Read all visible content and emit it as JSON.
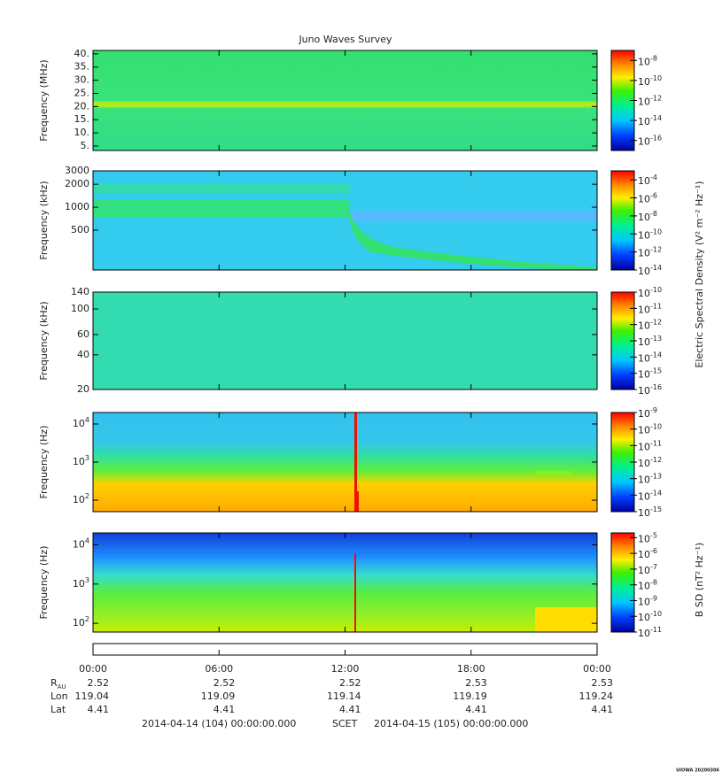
{
  "title": "Juno Waves Survey",
  "chart_data": [
    {
      "type": "spectrogram",
      "ylabel": "Frequency (MHz)",
      "ylog": false,
      "ylim": [
        3.3,
        41.3
      ],
      "yticks": [
        {
          "value": 5,
          "label": "5."
        },
        {
          "value": 10,
          "label": "10."
        },
        {
          "value": 15,
          "label": "15."
        },
        {
          "value": 20,
          "label": "20."
        },
        {
          "value": 25,
          "label": "25."
        },
        {
          "value": 30,
          "label": "30."
        },
        {
          "value": 35,
          "label": "35."
        },
        {
          "value": 40,
          "label": "40."
        }
      ],
      "zlim": [
        1e-17,
        1e-07
      ],
      "zticks": [
        {
          "value": 1e-16,
          "base": "10",
          "exp": "-16"
        },
        {
          "value": 1e-14,
          "base": "10",
          "exp": "-14"
        },
        {
          "value": 1e-12,
          "base": "10",
          "exp": "-12"
        },
        {
          "value": 1e-10,
          "base": "10",
          "exp": "-10"
        },
        {
          "value": 1e-08,
          "base": "10",
          "exp": "-8"
        }
      ]
    },
    {
      "type": "spectrogram",
      "ylabel": "Frequency (kHz)",
      "ylog": true,
      "ylim": [
        150,
        3000
      ],
      "yticks": [
        500,
        1000,
        2000,
        3000
      ],
      "zlim": [
        1e-14,
        0.001
      ],
      "zticks": [
        {
          "value": 1e-14,
          "base": "10",
          "exp": "-14"
        },
        {
          "value": 1e-12,
          "base": "10",
          "exp": "-12"
        },
        {
          "value": 1e-10,
          "base": "10",
          "exp": "-10"
        },
        {
          "value": 1e-08,
          "base": "10",
          "exp": "-8"
        },
        {
          "value": 1e-06,
          "base": "10",
          "exp": "-6"
        },
        {
          "value": 0.0001,
          "base": "10",
          "exp": "-4"
        }
      ]
    },
    {
      "type": "spectrogram",
      "ylabel": "Frequency (kHz)",
      "ylog": true,
      "ylim": [
        20,
        140
      ],
      "yticks": [
        20,
        40,
        60,
        100,
        140
      ],
      "zlim": [
        1e-16,
        1e-10
      ],
      "zticks": [
        {
          "value": 1e-16,
          "base": "10",
          "exp": "-16"
        },
        {
          "value": 1e-15,
          "base": "10",
          "exp": "-15"
        },
        {
          "value": 1e-14,
          "base": "10",
          "exp": "-14"
        },
        {
          "value": 1e-13,
          "base": "10",
          "exp": "-13"
        },
        {
          "value": 1e-12,
          "base": "10",
          "exp": "-12"
        },
        {
          "value": 1e-11,
          "base": "10",
          "exp": "-11"
        },
        {
          "value": 1e-10,
          "base": "10",
          "exp": "-10"
        }
      ]
    },
    {
      "type": "spectrogram",
      "ylabel": "Frequency (Hz)",
      "ylog": true,
      "ylim": [
        50,
        20000
      ],
      "yticks": [
        {
          "value": 100,
          "base": "10",
          "exp": "2"
        },
        {
          "value": 1000,
          "base": "10",
          "exp": "3"
        },
        {
          "value": 10000,
          "base": "10",
          "exp": "4"
        }
      ],
      "zlim": [
        1e-15,
        1e-09
      ],
      "zticks": [
        {
          "value": 1e-15,
          "base": "10",
          "exp": "-15"
        },
        {
          "value": 1e-14,
          "base": "10",
          "exp": "-14"
        },
        {
          "value": 1e-13,
          "base": "10",
          "exp": "-13"
        },
        {
          "value": 1e-12,
          "base": "10",
          "exp": "-12"
        },
        {
          "value": 1e-11,
          "base": "10",
          "exp": "-11"
        },
        {
          "value": 1e-10,
          "base": "10",
          "exp": "-10"
        },
        {
          "value": 1e-09,
          "base": "10",
          "exp": "-9"
        }
      ]
    },
    {
      "type": "spectrogram",
      "ylabel": "Frequency (Hz)",
      "ylog": true,
      "ylim": [
        60,
        20000
      ],
      "yticks": [
        {
          "value": 100,
          "base": "10",
          "exp": "2"
        },
        {
          "value": 1000,
          "base": "10",
          "exp": "3"
        },
        {
          "value": 10000,
          "base": "10",
          "exp": "4"
        }
      ],
      "zlim": [
        1e-11,
        2e-05
      ],
      "zticks": [
        {
          "value": 1e-11,
          "base": "10",
          "exp": "-11"
        },
        {
          "value": 1e-10,
          "base": "10",
          "exp": "-10"
        },
        {
          "value": 1e-09,
          "base": "10",
          "exp": "-9"
        },
        {
          "value": 1e-08,
          "base": "10",
          "exp": "-8"
        },
        {
          "value": 1e-07,
          "base": "10",
          "exp": "-7"
        },
        {
          "value": 1e-06,
          "base": "10",
          "exp": "-6"
        },
        {
          "value": 1e-05,
          "base": "10",
          "exp": "-5"
        }
      ]
    }
  ],
  "colorbar_labels": [
    "Electric Spectral Density (V² m⁻² Hz⁻¹)",
    "B SD (nT² Hz⁻¹)"
  ],
  "xaxis": {
    "times": [
      "00:00",
      "06:00",
      "12:00",
      "18:00",
      "00:00"
    ],
    "rows": [
      {
        "label": "R",
        "sub": "AU",
        "values": [
          2.52,
          2.52,
          2.52,
          2.53,
          2.53
        ]
      },
      {
        "label": "Lon",
        "values": [
          119.04,
          119.09,
          119.14,
          119.19,
          119.24
        ]
      },
      {
        "label": "Lat",
        "values": [
          4.41,
          4.41,
          4.41,
          4.41,
          4.41
        ]
      }
    ],
    "start": "2014-04-14 (104) 00:00:00.000",
    "frame": "SCET",
    "end": "2014-04-15 (105) 00:00:00.000"
  },
  "credit": "UIOWA 20200306"
}
